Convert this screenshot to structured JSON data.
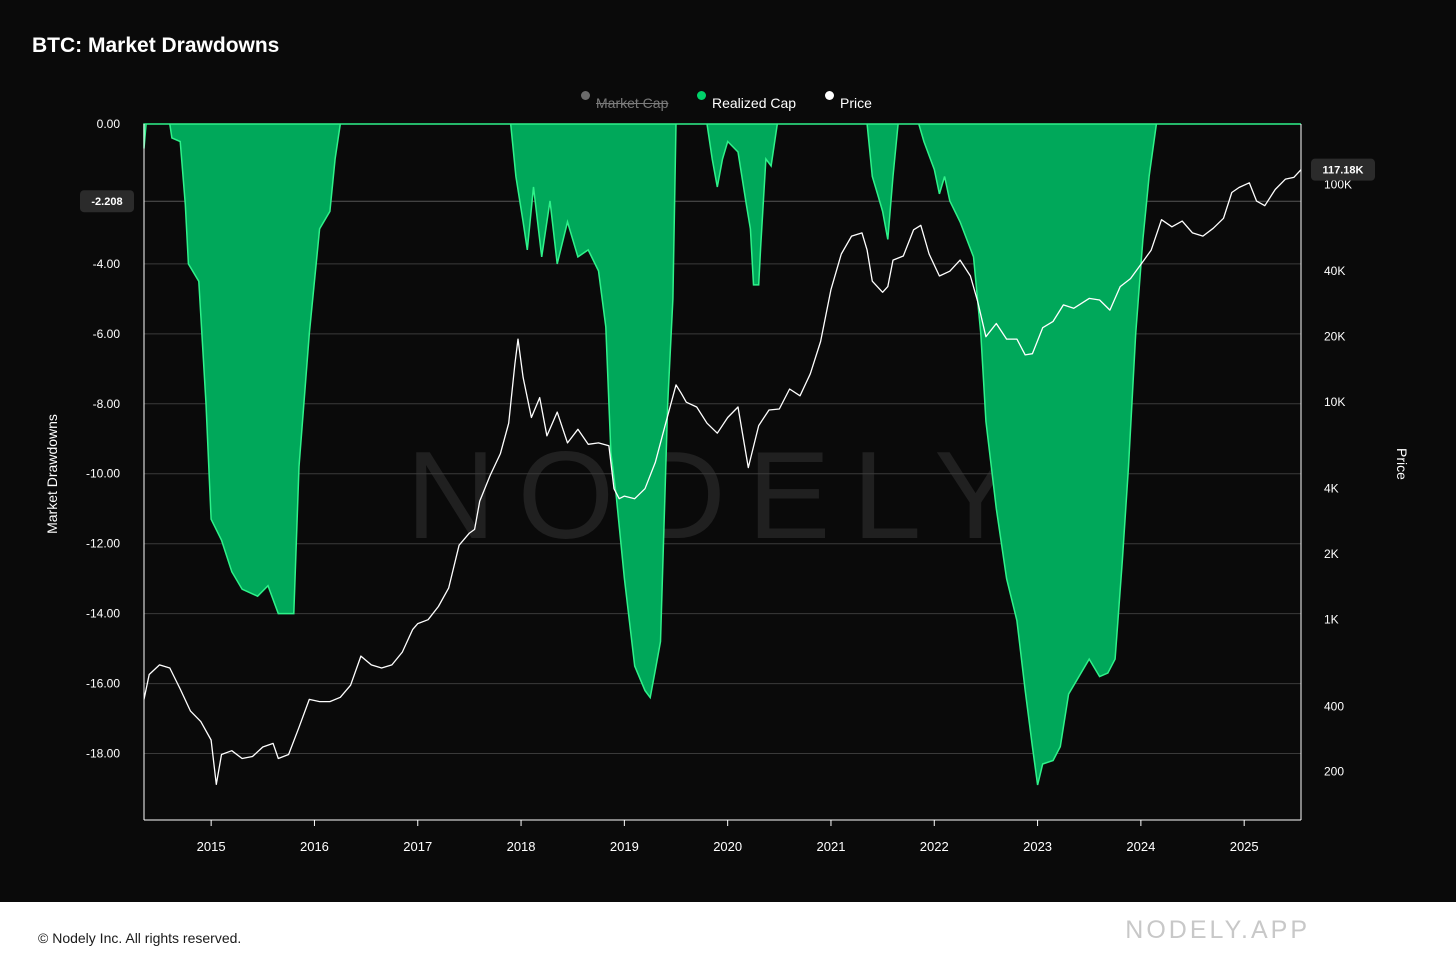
{
  "title": "BTC: Market Drawdowns",
  "legend": [
    {
      "label": "Market Cap",
      "color": "#6b6b6b",
      "active": false
    },
    {
      "label": "Realized Cap",
      "color": "#00d26a",
      "active": true
    },
    {
      "label": "Price",
      "color": "#ffffff",
      "active": true
    }
  ],
  "watermark": "NODELY",
  "footer": {
    "copyright": "© Nodely Inc. All rights reserved.",
    "brand": "NODELY.APP"
  },
  "colors": {
    "background": "#0a0a0a",
    "area_fill": "#00a85a",
    "area_edge": "#2ef28a",
    "price_line": "#ffffff",
    "grid": "#3a3a3a"
  },
  "chart_data": {
    "type": "area",
    "title": "BTC: Market Drawdowns",
    "y_left": {
      "label": "Market Drawdowns",
      "range": [
        -19.9,
        0
      ],
      "ticks": [
        0,
        -4,
        -6,
        -8,
        -10,
        -12,
        -14,
        -16,
        -18
      ],
      "tick_labels": [
        "0.00",
        "-4.00",
        "-6.00",
        "-8.00",
        "-10.00",
        "-12.00",
        "-14.00",
        "-16.00",
        "-18.00"
      ],
      "current_value_label": "-2.208",
      "current_value": -2.208
    },
    "y_right": {
      "label": "Price",
      "scale": "log",
      "range": [
        120,
        190000
      ],
      "ticks": [
        100000,
        40000,
        20000,
        10000,
        4000,
        2000,
        1000,
        400,
        200
      ],
      "tick_labels": [
        "100K",
        "40K",
        "20K",
        "10K",
        "4K",
        "2K",
        "1K",
        "400",
        "200"
      ],
      "current_value_label": "117.18K",
      "current_value": 117180
    },
    "x": {
      "range": [
        2014.35,
        2025.55
      ],
      "ticks": [
        2015,
        2016,
        2017,
        2018,
        2019,
        2020,
        2021,
        2022,
        2023,
        2024,
        2025
      ],
      "tick_labels": [
        "2015",
        "2016",
        "2017",
        "2018",
        "2019",
        "2020",
        "2021",
        "2022",
        "2023",
        "2024",
        "2025"
      ]
    },
    "grid": true,
    "legend_position": "top-center",
    "series": [
      {
        "name": "Realized Cap",
        "type": "area",
        "points": [
          [
            2014.35,
            -0.7
          ],
          [
            2014.37,
            0
          ],
          [
            2014.6,
            0
          ],
          [
            2014.62,
            -0.4
          ],
          [
            2014.7,
            -0.5
          ],
          [
            2014.75,
            -2.3
          ],
          [
            2014.78,
            -4.0
          ],
          [
            2014.88,
            -4.5
          ],
          [
            2014.95,
            -8.0
          ],
          [
            2015.0,
            -11.3
          ],
          [
            2015.1,
            -11.9
          ],
          [
            2015.2,
            -12.8
          ],
          [
            2015.3,
            -13.3
          ],
          [
            2015.45,
            -13.5
          ],
          [
            2015.55,
            -13.2
          ],
          [
            2015.65,
            -14.0
          ],
          [
            2015.8,
            -14.0
          ],
          [
            2015.85,
            -9.8
          ],
          [
            2015.95,
            -6.0
          ],
          [
            2016.05,
            -3.0
          ],
          [
            2016.15,
            -2.5
          ],
          [
            2016.2,
            -1.0
          ],
          [
            2016.25,
            0
          ],
          [
            2017.9,
            0
          ],
          [
            2017.95,
            -1.5
          ],
          [
            2018.02,
            -2.8
          ],
          [
            2018.06,
            -3.6
          ],
          [
            2018.12,
            -1.8
          ],
          [
            2018.2,
            -3.8
          ],
          [
            2018.28,
            -2.2
          ],
          [
            2018.35,
            -4.0
          ],
          [
            2018.45,
            -2.8
          ],
          [
            2018.55,
            -3.8
          ],
          [
            2018.65,
            -3.6
          ],
          [
            2018.75,
            -4.2
          ],
          [
            2018.82,
            -5.8
          ],
          [
            2018.87,
            -9.4
          ],
          [
            2018.92,
            -10.6
          ],
          [
            2019.0,
            -13.0
          ],
          [
            2019.1,
            -15.5
          ],
          [
            2019.2,
            -16.2
          ],
          [
            2019.25,
            -16.4
          ],
          [
            2019.3,
            -15.6
          ],
          [
            2019.35,
            -14.8
          ],
          [
            2019.42,
            -8.0
          ],
          [
            2019.47,
            -5.0
          ],
          [
            2019.5,
            0
          ],
          [
            2019.8,
            0
          ],
          [
            2019.85,
            -1.0
          ],
          [
            2019.9,
            -1.8
          ],
          [
            2019.95,
            -1.0
          ],
          [
            2020.0,
            -0.5
          ],
          [
            2020.1,
            -0.8
          ],
          [
            2020.18,
            -2.3
          ],
          [
            2020.22,
            -3.0
          ],
          [
            2020.25,
            -4.6
          ],
          [
            2020.3,
            -4.6
          ],
          [
            2020.32,
            -3.5
          ],
          [
            2020.37,
            -1.0
          ],
          [
            2020.42,
            -1.2
          ],
          [
            2020.48,
            0
          ],
          [
            2021.35,
            0
          ],
          [
            2021.4,
            -1.5
          ],
          [
            2021.45,
            -2.0
          ],
          [
            2021.5,
            -2.5
          ],
          [
            2021.55,
            -3.3
          ],
          [
            2021.6,
            -1.5
          ],
          [
            2021.65,
            0
          ],
          [
            2021.85,
            0
          ],
          [
            2021.9,
            -0.5
          ],
          [
            2022.0,
            -1.3
          ],
          [
            2022.05,
            -2.0
          ],
          [
            2022.1,
            -1.5
          ],
          [
            2022.15,
            -2.2
          ],
          [
            2022.25,
            -2.8
          ],
          [
            2022.38,
            -3.8
          ],
          [
            2022.45,
            -6.0
          ],
          [
            2022.5,
            -8.5
          ],
          [
            2022.6,
            -11.0
          ],
          [
            2022.7,
            -13.0
          ],
          [
            2022.8,
            -14.2
          ],
          [
            2022.88,
            -16.2
          ],
          [
            2022.95,
            -17.8
          ],
          [
            2023.0,
            -18.9
          ],
          [
            2023.05,
            -18.3
          ],
          [
            2023.15,
            -18.2
          ],
          [
            2023.22,
            -17.8
          ],
          [
            2023.3,
            -16.3
          ],
          [
            2023.4,
            -15.8
          ],
          [
            2023.5,
            -15.3
          ],
          [
            2023.6,
            -15.8
          ],
          [
            2023.68,
            -15.7
          ],
          [
            2023.75,
            -15.3
          ],
          [
            2023.82,
            -12.5
          ],
          [
            2023.88,
            -9.8
          ],
          [
            2023.95,
            -6.0
          ],
          [
            2024.02,
            -3.3
          ],
          [
            2024.08,
            -1.5
          ],
          [
            2024.15,
            0
          ],
          [
            2025.55,
            0
          ]
        ]
      },
      {
        "name": "Price",
        "type": "line",
        "points": [
          [
            2014.35,
            430
          ],
          [
            2014.4,
            560
          ],
          [
            2014.5,
            620
          ],
          [
            2014.6,
            600
          ],
          [
            2014.7,
            480
          ],
          [
            2014.8,
            380
          ],
          [
            2014.9,
            340
          ],
          [
            2015.0,
            280
          ],
          [
            2015.05,
            175
          ],
          [
            2015.1,
            240
          ],
          [
            2015.2,
            250
          ],
          [
            2015.3,
            230
          ],
          [
            2015.4,
            235
          ],
          [
            2015.5,
            260
          ],
          [
            2015.6,
            270
          ],
          [
            2015.65,
            230
          ],
          [
            2015.75,
            240
          ],
          [
            2015.85,
            320
          ],
          [
            2015.95,
            430
          ],
          [
            2016.05,
            420
          ],
          [
            2016.15,
            420
          ],
          [
            2016.25,
            440
          ],
          [
            2016.35,
            500
          ],
          [
            2016.45,
            680
          ],
          [
            2016.55,
            620
          ],
          [
            2016.65,
            600
          ],
          [
            2016.75,
            620
          ],
          [
            2016.85,
            710
          ],
          [
            2016.95,
            900
          ],
          [
            2017.0,
            960
          ],
          [
            2017.1,
            1000
          ],
          [
            2017.2,
            1150
          ],
          [
            2017.3,
            1400
          ],
          [
            2017.4,
            2200
          ],
          [
            2017.5,
            2500
          ],
          [
            2017.55,
            2600
          ],
          [
            2017.6,
            3500
          ],
          [
            2017.7,
            4600
          ],
          [
            2017.8,
            5800
          ],
          [
            2017.88,
            8000
          ],
          [
            2017.94,
            15000
          ],
          [
            2017.97,
            19500
          ],
          [
            2018.02,
            13000
          ],
          [
            2018.1,
            8500
          ],
          [
            2018.18,
            10500
          ],
          [
            2018.25,
            7000
          ],
          [
            2018.35,
            9000
          ],
          [
            2018.45,
            6500
          ],
          [
            2018.55,
            7500
          ],
          [
            2018.65,
            6400
          ],
          [
            2018.75,
            6500
          ],
          [
            2018.85,
            6300
          ],
          [
            2018.9,
            4000
          ],
          [
            2018.95,
            3600
          ],
          [
            2019.0,
            3700
          ],
          [
            2019.1,
            3600
          ],
          [
            2019.2,
            4000
          ],
          [
            2019.3,
            5300
          ],
          [
            2019.4,
            8000
          ],
          [
            2019.5,
            12000
          ],
          [
            2019.55,
            11000
          ],
          [
            2019.6,
            10000
          ],
          [
            2019.7,
            9500
          ],
          [
            2019.8,
            8000
          ],
          [
            2019.9,
            7200
          ],
          [
            2020.0,
            8500
          ],
          [
            2020.1,
            9500
          ],
          [
            2020.2,
            5000
          ],
          [
            2020.3,
            7800
          ],
          [
            2020.4,
            9200
          ],
          [
            2020.5,
            9300
          ],
          [
            2020.6,
            11500
          ],
          [
            2020.7,
            10700
          ],
          [
            2020.8,
            13500
          ],
          [
            2020.9,
            19000
          ],
          [
            2021.0,
            33000
          ],
          [
            2021.1,
            48000
          ],
          [
            2021.2,
            58000
          ],
          [
            2021.3,
            60000
          ],
          [
            2021.35,
            50000
          ],
          [
            2021.4,
            36000
          ],
          [
            2021.5,
            32000
          ],
          [
            2021.55,
            34000
          ],
          [
            2021.6,
            45000
          ],
          [
            2021.7,
            47000
          ],
          [
            2021.8,
            62000
          ],
          [
            2021.87,
            65000
          ],
          [
            2021.95,
            48000
          ],
          [
            2022.05,
            38000
          ],
          [
            2022.15,
            40000
          ],
          [
            2022.25,
            45000
          ],
          [
            2022.35,
            38000
          ],
          [
            2022.42,
            29000
          ],
          [
            2022.5,
            20000
          ],
          [
            2022.6,
            23000
          ],
          [
            2022.7,
            19500
          ],
          [
            2022.8,
            19500
          ],
          [
            2022.88,
            16500
          ],
          [
            2022.95,
            16700
          ],
          [
            2023.05,
            22000
          ],
          [
            2023.15,
            23500
          ],
          [
            2023.25,
            28000
          ],
          [
            2023.35,
            27000
          ],
          [
            2023.5,
            30000
          ],
          [
            2023.6,
            29500
          ],
          [
            2023.7,
            26500
          ],
          [
            2023.8,
            34000
          ],
          [
            2023.9,
            37000
          ],
          [
            2024.0,
            43000
          ],
          [
            2024.1,
            50000
          ],
          [
            2024.2,
            69000
          ],
          [
            2024.3,
            64000
          ],
          [
            2024.4,
            68000
          ],
          [
            2024.5,
            60000
          ],
          [
            2024.6,
            58000
          ],
          [
            2024.7,
            63000
          ],
          [
            2024.8,
            70000
          ],
          [
            2024.88,
            92000
          ],
          [
            2024.95,
            97000
          ],
          [
            2025.05,
            102000
          ],
          [
            2025.12,
            84000
          ],
          [
            2025.2,
            80000
          ],
          [
            2025.3,
            95000
          ],
          [
            2025.4,
            106000
          ],
          [
            2025.48,
            108000
          ],
          [
            2025.55,
            117180
          ]
        ]
      }
    ],
    "annotations": [
      "-2.208",
      "117.18K"
    ]
  }
}
